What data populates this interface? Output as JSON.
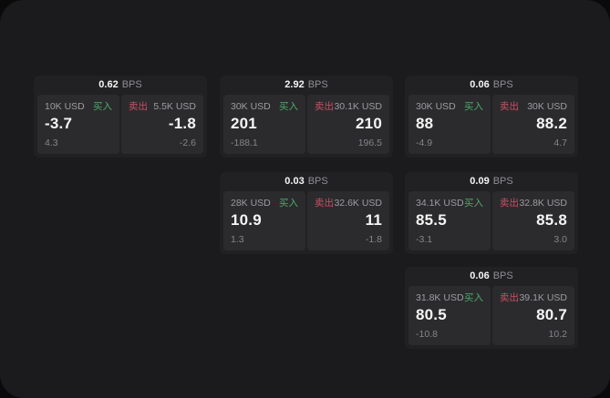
{
  "colors": {
    "outer_bg": "#0a0a0a",
    "page_bg": "#1b1b1d",
    "card_bg": "#212123",
    "panel_bg": "#2b2b2d",
    "buy_green": "#4aab6a",
    "sell_red": "#c94f63",
    "value_white": "#f5f5f5",
    "label_gray": "#9d9da2",
    "sub_gray": "#85858a"
  },
  "cards": [
    {
      "bps_value": "0.62",
      "bps_unit": "BPS",
      "buy": {
        "size": "10K USD",
        "side": "买入",
        "value": "-3.7",
        "sub": "4.3"
      },
      "sell": {
        "side": "卖出",
        "size": "5.5K USD",
        "value": "-1.8",
        "sub": "-2.6"
      }
    },
    {
      "bps_value": "2.92",
      "bps_unit": "BPS",
      "buy": {
        "size": "30K USD",
        "side": "买入",
        "value": "201",
        "sub": "-188.1"
      },
      "sell": {
        "side": "卖出",
        "size": "30.1K USD",
        "value": "210",
        "sub": "196.5"
      }
    },
    {
      "bps_value": "0.06",
      "bps_unit": "BPS",
      "buy": {
        "size": "30K USD",
        "side": "买入",
        "value": "88",
        "sub": "-4.9"
      },
      "sell": {
        "side": "卖出",
        "size": "30K USD",
        "value": "88.2",
        "sub": "4.7"
      }
    },
    {
      "bps_value": "0.03",
      "bps_unit": "BPS",
      "buy": {
        "size": "28K USD",
        "side": "买入",
        "value": "10.9",
        "sub": "1.3"
      },
      "sell": {
        "side": "卖出",
        "size": "32.6K USD",
        "value": "11",
        "sub": "-1.8"
      }
    },
    {
      "bps_value": "0.09",
      "bps_unit": "BPS",
      "buy": {
        "size": "34.1K USD",
        "side": "买入",
        "value": "85.5",
        "sub": "-3.1"
      },
      "sell": {
        "side": "卖出",
        "size": "32.8K USD",
        "value": "85.8",
        "sub": "3.0"
      }
    },
    {
      "bps_value": "0.06",
      "bps_unit": "BPS",
      "buy": {
        "size": "31.8K USD",
        "side": "买入",
        "value": "80.5",
        "sub": "-10.8"
      },
      "sell": {
        "side": "卖出",
        "size": "39.1K USD",
        "value": "80.7",
        "sub": "10.2"
      }
    }
  ]
}
